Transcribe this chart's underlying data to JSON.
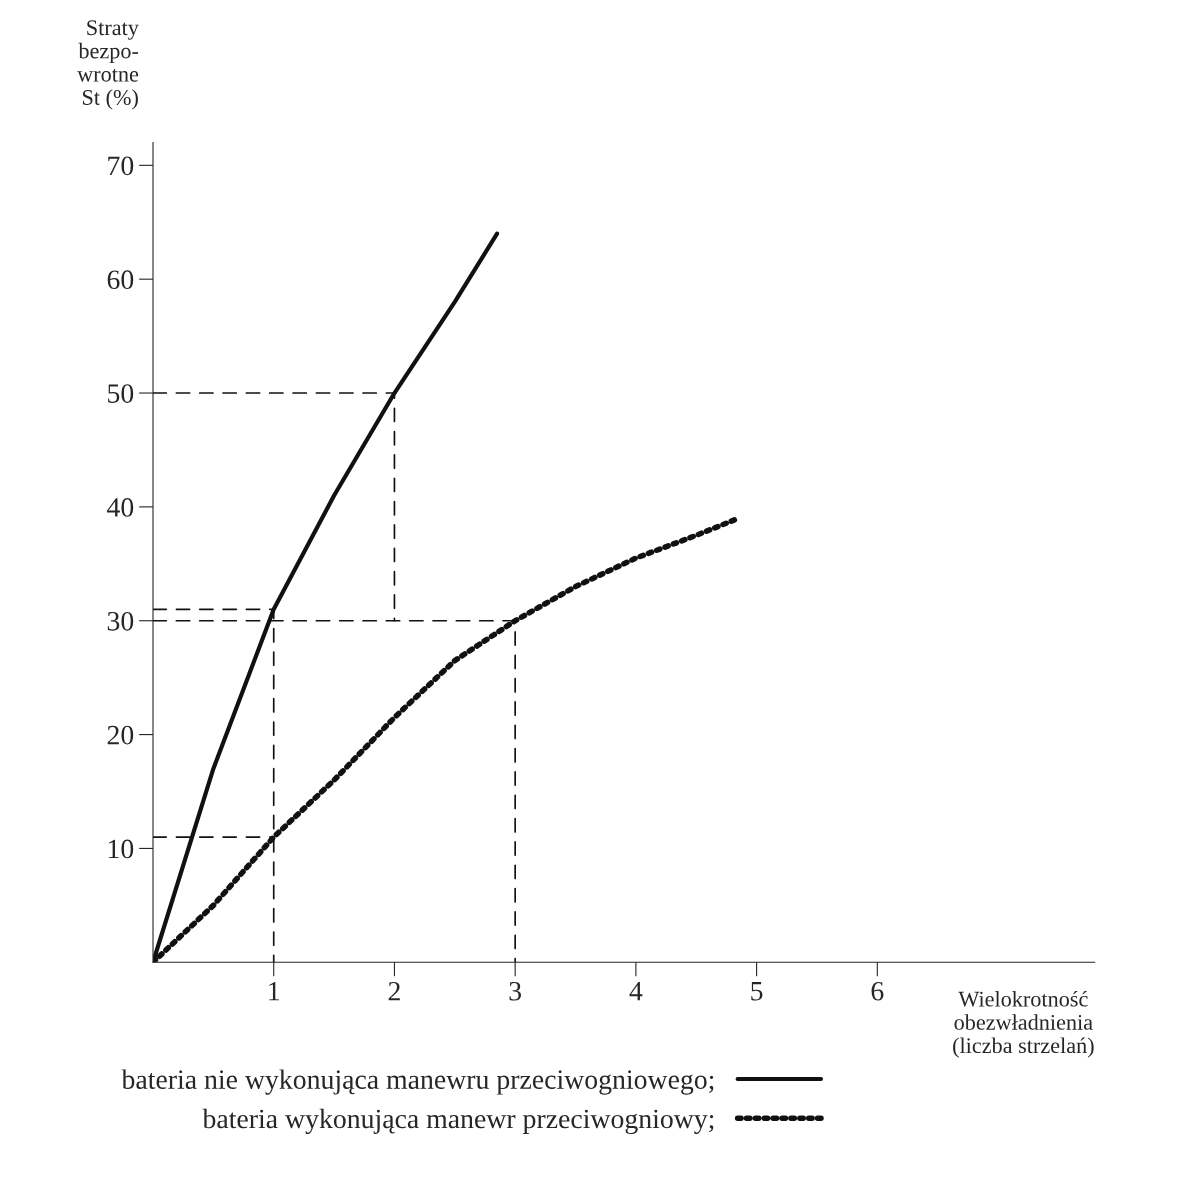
{
  "chart_data": {
    "type": "line",
    "ylabel": "Straty\nbezpo-\nwrotne\nSt (%)",
    "xlabel": "Wielokrotność\nobezwładnienia\n(liczba strzelań)",
    "xlim": [
      0,
      7.8
    ],
    "ylim": [
      0,
      72
    ],
    "xticks": [
      1,
      2,
      3,
      4,
      5,
      6
    ],
    "yticks": [
      10,
      20,
      30,
      40,
      50,
      60,
      70
    ],
    "grid": false,
    "legend": "bottom",
    "marker": "none",
    "series": [
      {
        "name": "bateria nie wykonująca manewru przeciwogniowego;",
        "color": "#111111",
        "line_style": "solid",
        "x": [
          0,
          0.5,
          1,
          1.5,
          2,
          2.5,
          2.85
        ],
        "values": [
          0,
          17,
          31,
          41,
          50,
          58,
          64
        ]
      },
      {
        "name": "bateria wykonująca manewr przeciwogniowy;",
        "color": "#111111",
        "line_style": "dotted",
        "x": [
          0,
          0.5,
          1,
          1.5,
          2,
          2.5,
          3,
          3.5,
          4,
          4.5,
          4.85
        ],
        "values": [
          0,
          5,
          11,
          16,
          21.5,
          26.5,
          30,
          33,
          35.5,
          37.5,
          39
        ]
      },
      {
        "color": "#111111",
        "line_style": "dashed",
        "x": [
          0,
          2,
          2
        ],
        "values": [
          50,
          50,
          30
        ]
      },
      {
        "color": "#111111",
        "line_style": "dashed",
        "x": [
          0,
          3,
          3
        ],
        "values": [
          30,
          30,
          0
        ]
      },
      {
        "color": "#111111",
        "line_style": "dashed",
        "x": [
          0,
          1,
          1
        ],
        "values": [
          31,
          31,
          0
        ]
      },
      {
        "color": "#111111",
        "line_style": "dashed",
        "x": [
          0,
          1
        ],
        "values": [
          11,
          11
        ]
      }
    ]
  }
}
